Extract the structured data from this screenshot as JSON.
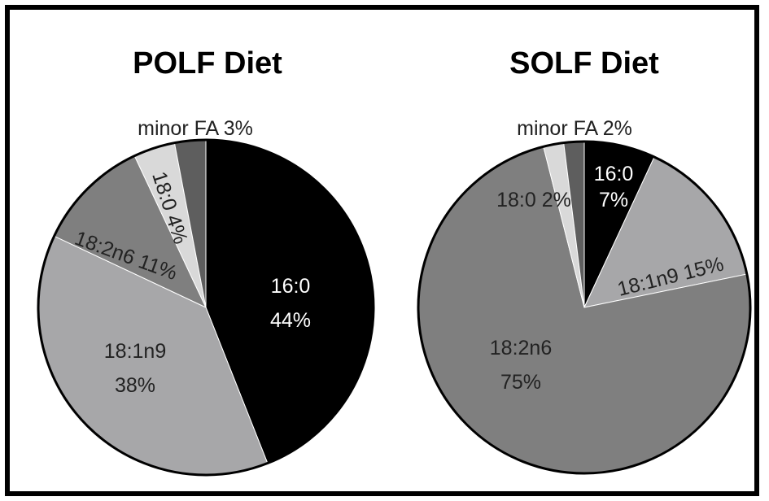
{
  "chart_data": [
    {
      "type": "pie",
      "title": "POLF Diet",
      "start_angle_deg": -90,
      "slices": [
        {
          "label": "16:0",
          "value": 44,
          "value_text": "44%",
          "color": "#000000",
          "text_color": "#ffffff"
        },
        {
          "label": "18:1n9",
          "value": 38,
          "value_text": "38%",
          "color": "#a7a7a9",
          "text_color": "#222222"
        },
        {
          "label": "18:2n6",
          "value": 11,
          "value_text": "11%",
          "color": "#7f7f7f",
          "text_color": "#222222"
        },
        {
          "label": "18:0",
          "value": 4,
          "value_text": "4%",
          "color": "#d9d9d9",
          "text_color": "#222222"
        },
        {
          "label": "minor FA",
          "value": 3,
          "value_text": "3%",
          "color": "#5e5e5e",
          "text_color": "#222222"
        }
      ]
    },
    {
      "type": "pie",
      "title": "SOLF  Diet",
      "start_angle_deg": -90,
      "slices": [
        {
          "label": "16:0",
          "value": 7,
          "value_text": "7%",
          "color": "#000000",
          "text_color": "#ffffff"
        },
        {
          "label": "18:1n9",
          "value": 15,
          "value_text": "15%",
          "color": "#a7a7a9",
          "text_color": "#222222"
        },
        {
          "label": "18:2n6",
          "value": 75,
          "value_text": "75%",
          "color": "#7f7f7f",
          "text_color": "#222222"
        },
        {
          "label": "18:0",
          "value": 2,
          "value_text": "2%",
          "color": "#d9d9d9",
          "text_color": "#222222"
        },
        {
          "label": "minor FA",
          "value": 2,
          "value_text": "2%",
          "color": "#5e5e5e",
          "text_color": "#222222"
        }
      ]
    }
  ]
}
